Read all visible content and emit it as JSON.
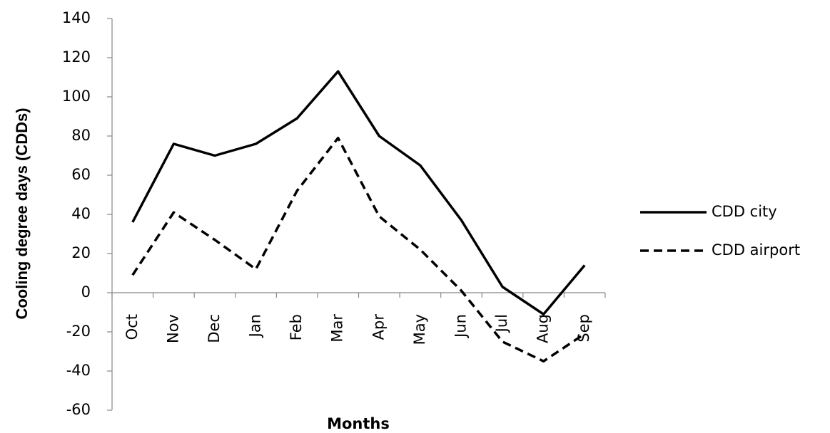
{
  "chart_data": {
    "type": "line",
    "y_label": "Cooling degree days (CDDs)",
    "x_label": "Months",
    "categories": [
      "Oct",
      "Nov",
      "Dec",
      "Jan",
      "Feb",
      "Mar",
      "Apr",
      "May",
      "Jun",
      "Jul",
      "Aug",
      "Sep"
    ],
    "series": [
      {
        "name": "CDD city",
        "color": "#000000",
        "dash": "solid",
        "values": [
          36,
          76,
          70,
          76,
          89,
          113,
          80,
          65,
          37,
          3,
          -11,
          14
        ]
      },
      {
        "name": "CDD airport",
        "color": "#000000",
        "dash": "dashed",
        "values": [
          9,
          41,
          27,
          12,
          52,
          79,
          39,
          22,
          1,
          -25,
          -35,
          -21
        ]
      }
    ],
    "ylim": [
      -60,
      140
    ],
    "yticks": [
      -60,
      -40,
      -20,
      0,
      20,
      40,
      60,
      80,
      100,
      120,
      140
    ],
    "grid": false,
    "legend": "right"
  }
}
